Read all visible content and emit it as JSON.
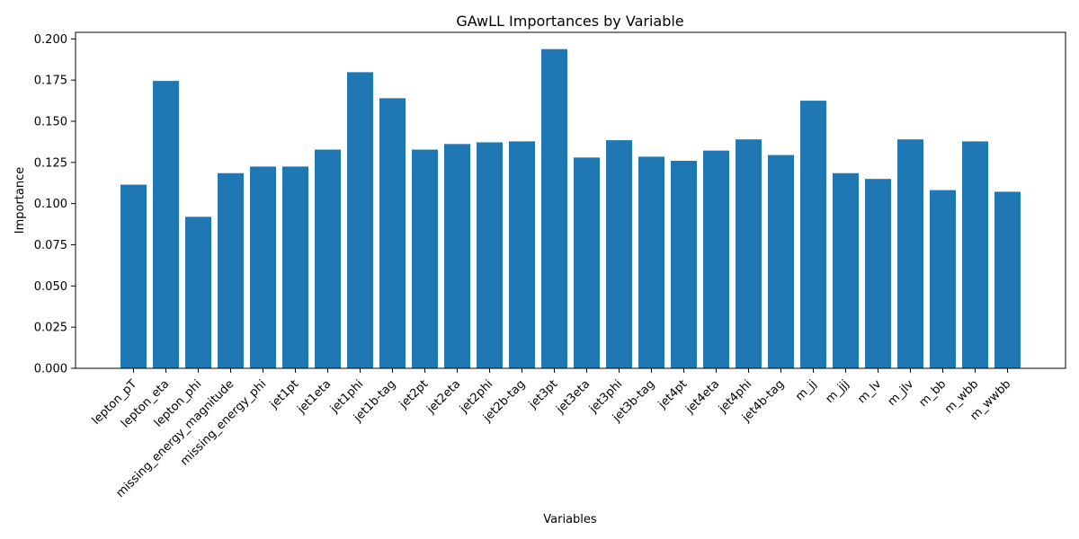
{
  "chart_data": {
    "type": "bar",
    "title": "GAwLL Importances by Variable",
    "xlabel": "Variables",
    "ylabel": "Importance",
    "ylim": [
      0,
      0.204
    ],
    "yticks": [
      0.0,
      0.025,
      0.05,
      0.075,
      0.1,
      0.125,
      0.15,
      0.175,
      0.2
    ],
    "ytick_labels": [
      "0.000",
      "0.025",
      "0.050",
      "0.075",
      "0.100",
      "0.125",
      "0.150",
      "0.175",
      "0.200"
    ],
    "grid": false,
    "bar_color": "#1f77b4",
    "categories": [
      "lepton_pT",
      "lepton_eta",
      "lepton_phi",
      "missing_energy_magnitude",
      "missing_energy_phi",
      "jet1pt",
      "jet1eta",
      "jet1phi",
      "jet1b-tag",
      "jet2pt",
      "jet2eta",
      "jet2phi",
      "jet2b-tag",
      "jet3pt",
      "jet3eta",
      "jet3phi",
      "jet3b-tag",
      "jet4pt",
      "jet4eta",
      "jet4phi",
      "jet4b-tag",
      "m_jj",
      "m_jjj",
      "m_lv",
      "m_jlv",
      "m_bb",
      "m_wbb",
      "m_wwbb"
    ],
    "values": [
      0.1115,
      0.1745,
      0.092,
      0.1185,
      0.1225,
      0.1225,
      0.1328,
      0.1798,
      0.164,
      0.1328,
      0.1362,
      0.1372,
      0.1378,
      0.1938,
      0.128,
      0.1385,
      0.1285,
      0.126,
      0.1322,
      0.139,
      0.1295,
      0.1625,
      0.1185,
      0.115,
      0.139,
      0.1082,
      0.1378,
      0.1072
    ]
  }
}
